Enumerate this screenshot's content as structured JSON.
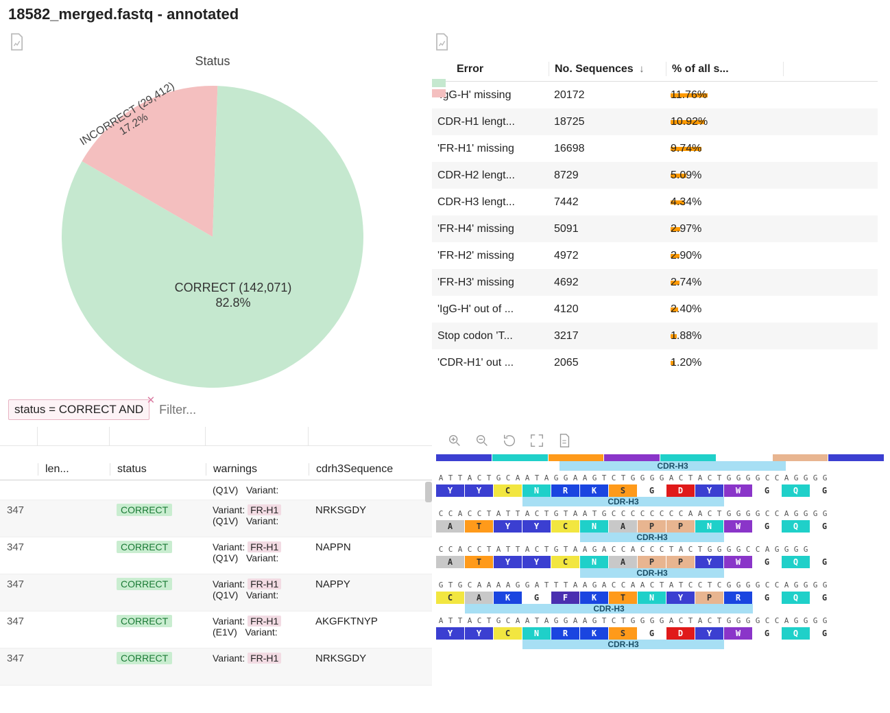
{
  "title": "18582_merged.fastq - annotated",
  "pie": {
    "title": "Status",
    "type": "pie",
    "slices": [
      {
        "label_main": "INCORRECT (29,412)",
        "label_sub": "17.2%",
        "value": 17.2,
        "color": "#f4bfbf"
      },
      {
        "label_main": "CORRECT (142,071)",
        "label_sub": "82.8%",
        "value": 82.8,
        "color": "#c5e8cf"
      }
    ],
    "legend_colors": [
      "#c5e8cf",
      "#f4bfbf"
    ]
  },
  "filter": {
    "chip_text": "status = CORRECT AND",
    "placeholder": "Filter..."
  },
  "error_table": {
    "headers": {
      "error": "Error",
      "num": "No. Sequences",
      "pct": "% of all s...",
      "sort_dir": "↓"
    },
    "bar_color": "#ff9a00",
    "max_pct": 12,
    "rows": [
      {
        "error": "'IgG-H' missing",
        "num": "20172",
        "pct": "11.76%",
        "pct_val": 11.76
      },
      {
        "error": "CDR-H1 lengt...",
        "num": "18725",
        "pct": "10.92%",
        "pct_val": 10.92
      },
      {
        "error": "'FR-H1' missing",
        "num": "16698",
        "pct": "9.74%",
        "pct_val": 9.74
      },
      {
        "error": "CDR-H2 lengt...",
        "num": "8729",
        "pct": "5.09%",
        "pct_val": 5.09
      },
      {
        "error": "CDR-H3 lengt...",
        "num": "7442",
        "pct": "4.34%",
        "pct_val": 4.34
      },
      {
        "error": "'FR-H4' missing",
        "num": "5091",
        "pct": "2.97%",
        "pct_val": 2.97
      },
      {
        "error": "'FR-H2' missing",
        "num": "4972",
        "pct": "2.90%",
        "pct_val": 2.9
      },
      {
        "error": "'FR-H3' missing",
        "num": "4692",
        "pct": "2.74%",
        "pct_val": 2.74
      },
      {
        "error": "'IgG-H' out of ...",
        "num": "4120",
        "pct": "2.40%",
        "pct_val": 2.4
      },
      {
        "error": "Stop codon 'T...",
        "num": "3217",
        "pct": "1.88%",
        "pct_val": 1.88
      },
      {
        "error": "'CDR-H1' out ...",
        "num": "2065",
        "pct": "1.20%",
        "pct_val": 1.2
      }
    ]
  },
  "seq_table": {
    "headers": {
      "len": "len...",
      "status": "status",
      "warnings": "warnings",
      "cdr": "cdrh3Sequence"
    },
    "first_warn_tail": {
      "qtag": "(Q1V)",
      "text": "Variant:"
    },
    "rows": [
      {
        "len": "347",
        "status": "CORRECT",
        "w1": "Variant:",
        "w1tag": "FR-H1",
        "w2q": "(Q1V)",
        "w2t": "Variant:",
        "cdr": "NRKSGDY"
      },
      {
        "len": "347",
        "status": "CORRECT",
        "w1": "Variant:",
        "w1tag": "FR-H1",
        "w2q": "(Q1V)",
        "w2t": "Variant:",
        "cdr": "NAPPN"
      },
      {
        "len": "347",
        "status": "CORRECT",
        "w1": "Variant:",
        "w1tag": "FR-H1",
        "w2q": "(Q1V)",
        "w2t": "Variant:",
        "cdr": "NAPPY"
      },
      {
        "len": "347",
        "status": "CORRECT",
        "w1": "Variant:",
        "w1tag": "FR-H1",
        "w2q": "(E1V)",
        "w2t": "Variant:",
        "cdr": "AKGFKTNYP"
      },
      {
        "len": "347",
        "status": "CORRECT",
        "w1": "Variant:",
        "w1tag": "FR-H1",
        "w2q": "",
        "w2t": "",
        "cdr": "NRKSGDY"
      }
    ]
  },
  "seq_view": {
    "cdr_label": "CDR-H3",
    "aa_colors": {
      "Y": "#3b3fd1",
      "C": "#f2e640",
      "N": "#1fd0c9",
      "R": "#1a45e0",
      "K": "#1a45e0",
      "S": "#ff9a1a",
      "G": "#ffffff",
      "D": "#e01a1a",
      "W": "#8a35c9",
      "Q": "#1fd0c9",
      "A": "#c8c8c8",
      "T": "#ff9a1a",
      "P": "#e8b590",
      "F": "#4a2fb0",
      "E": "#e01a1a",
      "default": "#c8c8c8"
    },
    "aa_textcolor_light": [
      "G",
      "A",
      "C",
      "S",
      "T",
      "P"
    ],
    "tracks": [
      {
        "nt": "ATTACTGCAATAGGAAGTCTGGGGACTACTGGGGCCAGGGG",
        "aa": "YYCNRKSGDYWGQG",
        "cdr_start": 3,
        "cdr_end": 10
      },
      {
        "nt": "CCACCTATTACTGTAATGCCCCCCCCAACTGGGGCCAGGGG",
        "aa": "ATYYCNAPPNWGQG",
        "cdr_start": 5,
        "cdr_end": 10
      },
      {
        "nt": "CCACCTATTACTGTAAGACCACCCTACTGGGGCCAGGGG",
        "aa": "ATYYCNAPPYWGQG",
        "cdr_start": 5,
        "cdr_end": 10
      },
      {
        "nt": "GTGCAAAAGGATTTAAGACCAACTATCCTCGGGGCCAGGGG",
        "aa": "CAKGFKTNYPRGQG",
        "cdr_start": 1,
        "cdr_end": 11
      },
      {
        "nt": "ATTACTGCAATAGGAAGTCTGGGGACTACTGGGGCCAGGGG",
        "aa": "YYCNRKSGDYWGQG",
        "cdr_start": 3,
        "cdr_end": 10
      }
    ]
  }
}
